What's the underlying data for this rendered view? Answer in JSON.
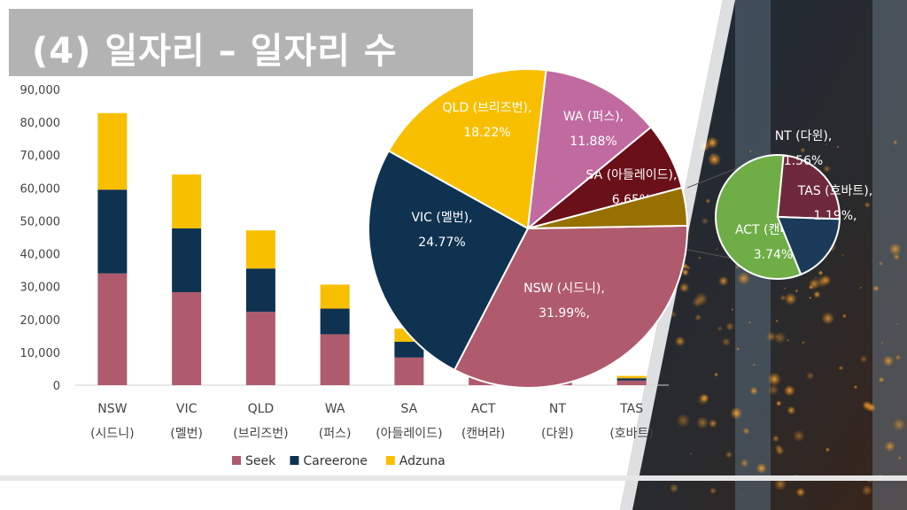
{
  "title": "(4) 일자리 – 일자리 수",
  "colors": {
    "seek": "#b05a6e",
    "careerone": "#0f3250",
    "adzuna": "#f8bf00",
    "pie_nsw": "#b05a6e",
    "pie_vic": "#0f3250",
    "pie_qld": "#f8bf00",
    "pie_wa": "#c06aa0",
    "pie_sa": "#6a1018",
    "pie_act_main": "#967000",
    "pie_act_small": "#6fad47",
    "pie_nt": "#6e2a3c",
    "pie_tas": "#1c3a5a"
  },
  "chart_data": [
    {
      "type": "bar",
      "stacked": true,
      "categories": [
        "NSW\n(시드니)",
        "VIC\n(멜번)",
        "QLD\n(브리즈번)",
        "WA\n(퍼스)",
        "SA\n(아들레이드)",
        "ACT\n(캔버라)",
        "NT\n(다윈)",
        "TAS\n(호바트)"
      ],
      "category_lines": [
        [
          "NSW",
          "(시드니)"
        ],
        [
          "VIC",
          "(멜번)"
        ],
        [
          "QLD",
          "(브리즈번)"
        ],
        [
          "WA",
          "(퍼스)"
        ],
        [
          "SA",
          "(아들레이드)"
        ],
        [
          "ACT",
          "(캔버라)"
        ],
        [
          "NT",
          "(다윈)"
        ],
        [
          "TAS",
          "(호바트)"
        ]
      ],
      "series": [
        {
          "name": "Seek",
          "values": [
            34000,
            28300,
            22300,
            15500,
            8400,
            4200,
            1700,
            1400
          ]
        },
        {
          "name": "Careerone",
          "values": [
            25500,
            19400,
            13200,
            7800,
            4800,
            2300,
            900,
            700
          ]
        },
        {
          "name": "Adzuna",
          "values": [
            23300,
            16400,
            11600,
            7300,
            4000,
            1800,
            700,
            700
          ]
        }
      ],
      "ylim": [
        0,
        90000
      ],
      "yticks": [
        "0",
        "10,000",
        "20,000",
        "30,000",
        "40,000",
        "50,000",
        "60,000",
        "70,000",
        "80,000",
        "90,000"
      ],
      "ytick_values": [
        0,
        10000,
        20000,
        30000,
        40000,
        50000,
        60000,
        70000,
        80000,
        90000
      ],
      "legend_position": "bottom",
      "grid": false
    },
    {
      "type": "pie",
      "slices": [
        {
          "key": "nsw",
          "label": "NSW (시드니),",
          "pct_label": "31.99%,",
          "value": 31.99
        },
        {
          "key": "vic",
          "label": "VIC (멜번),",
          "pct_label": "24.77%",
          "value": 24.77
        },
        {
          "key": "qld",
          "label": "QLD (브리즈번),",
          "pct_label": "18.22%",
          "value": 18.22
        },
        {
          "key": "wa",
          "label": "WA (퍼스),",
          "pct_label": "11.88%",
          "value": 11.88
        },
        {
          "key": "sa",
          "label": "SA (아들레이드),",
          "pct_label": "6.65%",
          "value": 6.65
        },
        {
          "key": "act",
          "label": "",
          "pct_label": "",
          "value": 3.74
        }
      ]
    },
    {
      "type": "pie",
      "slices": [
        {
          "key": "act",
          "label": "ACT (캔버라),",
          "pct_label": "3.74%",
          "value": 3.74
        },
        {
          "key": "nt",
          "label": "NT (다윈),",
          "pct_label": "1.56%",
          "value": 1.56
        },
        {
          "key": "tas",
          "label": "TAS (호바트),",
          "pct_label": "1.19%,",
          "value": 1.19
        }
      ]
    }
  ]
}
